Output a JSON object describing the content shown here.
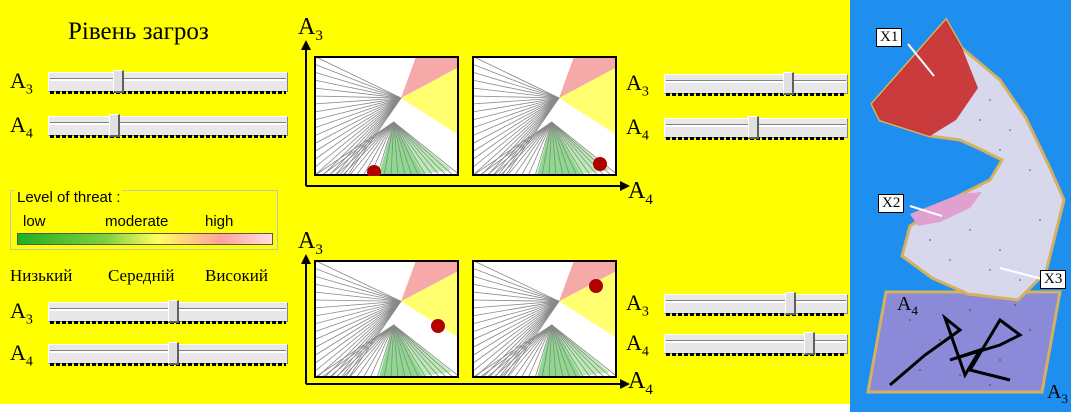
{
  "title": "Рівень загроз",
  "sliders_top_left": [
    {
      "label": "A",
      "sub": "3",
      "value": 0.28
    },
    {
      "label": "A",
      "sub": "4",
      "value": 0.26
    }
  ],
  "sliders_top_right": [
    {
      "label": "A",
      "sub": "3",
      "value": 0.69
    },
    {
      "label": "A",
      "sub": "4",
      "value": 0.48
    }
  ],
  "sliders_bottom_left": [
    {
      "label": "A",
      "sub": "3",
      "value": 0.52
    },
    {
      "label": "A",
      "sub": "4",
      "value": 0.52
    }
  ],
  "sliders_bottom_right": [
    {
      "label": "A",
      "sub": "3",
      "value": 0.7
    },
    {
      "label": "A",
      "sub": "4",
      "value": 0.81
    }
  ],
  "legend": {
    "title": "Level of threat :",
    "low": "low",
    "moderate": "moderate",
    "high": "high"
  },
  "levels_ua": {
    "low": "Низький",
    "medium": "Середній",
    "high": "Високий"
  },
  "axes": {
    "y": "A",
    "y_sub": "3",
    "x": "A",
    "x_sub": "4"
  },
  "surface_labels": {
    "x1": "X1",
    "x2": "X2",
    "x3": "X3",
    "a4": "A",
    "a4_sub": "4",
    "a3": "A",
    "a3_sub": "3"
  },
  "colors": {
    "background": "#ffff00",
    "right_panel": "#1f8fef",
    "point": "#b00000"
  }
}
